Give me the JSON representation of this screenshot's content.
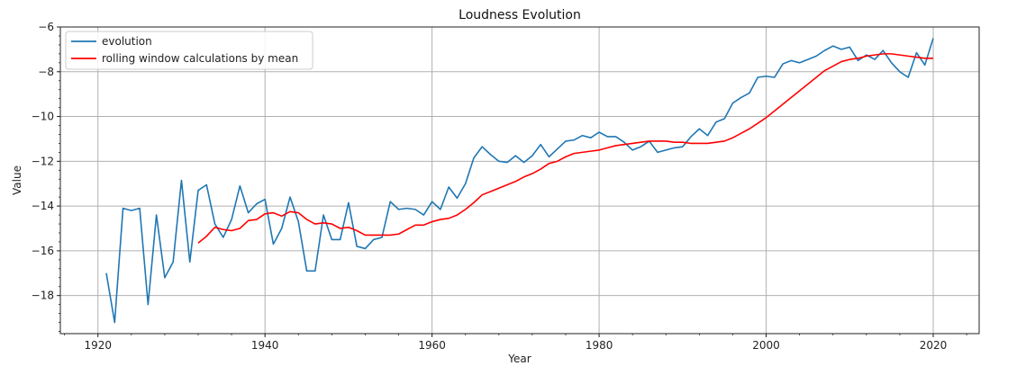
{
  "chart_data": {
    "type": "line",
    "title": "Loudness Evolution",
    "xlabel": "Year",
    "ylabel": "Value",
    "xlim": [
      1915.5,
      2025.5
    ],
    "ylim": [
      -19.7,
      -6.0
    ],
    "xticks": [
      1920,
      1940,
      1960,
      1980,
      2000,
      2020
    ],
    "yticks": [
      -18,
      -16,
      -14,
      -12,
      -10,
      -8,
      -6
    ],
    "grid": true,
    "legend_position": "top-left",
    "series": [
      {
        "name": "evolution",
        "color": "#1f77b4",
        "x": [
          1921,
          1922,
          1923,
          1924,
          1925,
          1926,
          1927,
          1928,
          1929,
          1930,
          1931,
          1932,
          1933,
          1934,
          1935,
          1936,
          1937,
          1938,
          1939,
          1940,
          1941,
          1942,
          1943,
          1944,
          1945,
          1946,
          1947,
          1948,
          1949,
          1950,
          1951,
          1952,
          1953,
          1954,
          1955,
          1956,
          1957,
          1958,
          1959,
          1960,
          1961,
          1962,
          1963,
          1964,
          1965,
          1966,
          1967,
          1968,
          1969,
          1970,
          1971,
          1972,
          1973,
          1974,
          1975,
          1976,
          1977,
          1978,
          1979,
          1980,
          1981,
          1982,
          1983,
          1984,
          1985,
          1986,
          1987,
          1988,
          1989,
          1990,
          1991,
          1992,
          1993,
          1994,
          1995,
          1996,
          1997,
          1998,
          1999,
          2000,
          2001,
          2002,
          2003,
          2004,
          2005,
          2006,
          2007,
          2008,
          2009,
          2010,
          2011,
          2012,
          2013,
          2014,
          2015,
          2016,
          2017,
          2018,
          2019,
          2020
        ],
        "y": [
          -17.0,
          -19.2,
          -14.1,
          -14.2,
          -14.1,
          -18.4,
          -14.4,
          -17.2,
          -16.5,
          -12.85,
          -16.5,
          -13.3,
          -13.05,
          -14.8,
          -15.4,
          -14.6,
          -13.1,
          -14.3,
          -13.9,
          -13.7,
          -15.7,
          -15.0,
          -13.6,
          -14.7,
          -16.9,
          -16.9,
          -14.4,
          -15.5,
          -15.5,
          -13.85,
          -15.8,
          -15.9,
          -15.5,
          -15.4,
          -13.8,
          -14.15,
          -14.1,
          -14.15,
          -14.4,
          -13.8,
          -14.15,
          -13.15,
          -13.65,
          -13.0,
          -11.85,
          -11.35,
          -11.7,
          -12.0,
          -12.05,
          -11.75,
          -12.05,
          -11.75,
          -11.25,
          -11.8,
          -11.45,
          -11.1,
          -11.05,
          -10.85,
          -10.95,
          -10.7,
          -10.9,
          -10.9,
          -11.15,
          -11.5,
          -11.35,
          -11.1,
          -11.6,
          -11.5,
          -11.4,
          -11.35,
          -10.9,
          -10.55,
          -10.85,
          -10.25,
          -10.1,
          -9.4,
          -9.15,
          -8.95,
          -8.25,
          -8.2,
          -8.25,
          -7.65,
          -7.5,
          -7.6,
          -7.45,
          -7.3,
          -7.05,
          -6.85,
          -7.0,
          -6.9,
          -7.5,
          -7.25,
          -7.45,
          -7.05,
          -7.6,
          -8.0,
          -8.25,
          -7.15,
          -7.7,
          -6.5
        ]
      },
      {
        "name": "rolling window calculations by mean",
        "color": "#ff0000",
        "x": [
          1932,
          1933,
          1934,
          1935,
          1936,
          1937,
          1938,
          1939,
          1940,
          1941,
          1942,
          1943,
          1944,
          1945,
          1946,
          1947,
          1948,
          1949,
          1950,
          1951,
          1952,
          1953,
          1954,
          1955,
          1956,
          1957,
          1958,
          1959,
          1960,
          1961,
          1962,
          1963,
          1964,
          1965,
          1966,
          1967,
          1968,
          1969,
          1970,
          1971,
          1972,
          1973,
          1974,
          1975,
          1976,
          1977,
          1978,
          1979,
          1980,
          1981,
          1982,
          1983,
          1984,
          1985,
          1986,
          1987,
          1988,
          1989,
          1990,
          1991,
          1992,
          1993,
          1994,
          1995,
          1996,
          1997,
          1998,
          1999,
          2000,
          2001,
          2002,
          2003,
          2004,
          2005,
          2006,
          2007,
          2008,
          2009,
          2010,
          2011,
          2012,
          2013,
          2014,
          2015,
          2016,
          2017,
          2018,
          2019,
          2020
        ],
        "y": [
          -15.65,
          -15.35,
          -14.95,
          -15.05,
          -15.1,
          -15.0,
          -14.65,
          -14.6,
          -14.35,
          -14.3,
          -14.45,
          -14.25,
          -14.3,
          -14.6,
          -14.8,
          -14.75,
          -14.8,
          -15.0,
          -14.95,
          -15.1,
          -15.3,
          -15.3,
          -15.3,
          -15.3,
          -15.25,
          -15.05,
          -14.85,
          -14.85,
          -14.7,
          -14.6,
          -14.55,
          -14.4,
          -14.15,
          -13.85,
          -13.5,
          -13.35,
          -13.2,
          -13.05,
          -12.9,
          -12.7,
          -12.55,
          -12.35,
          -12.1,
          -12.0,
          -11.8,
          -11.65,
          -11.6,
          -11.55,
          -11.5,
          -11.4,
          -11.3,
          -11.25,
          -11.2,
          -11.15,
          -11.1,
          -11.1,
          -11.1,
          -11.15,
          -11.15,
          -11.2,
          -11.2,
          -11.2,
          -11.15,
          -11.1,
          -10.95,
          -10.75,
          -10.55,
          -10.3,
          -10.05,
          -9.75,
          -9.45,
          -9.15,
          -8.85,
          -8.55,
          -8.25,
          -7.95,
          -7.75,
          -7.55,
          -7.45,
          -7.4,
          -7.3,
          -7.25,
          -7.2,
          -7.2,
          -7.25,
          -7.3,
          -7.35,
          -7.4,
          -7.4
        ]
      }
    ]
  }
}
